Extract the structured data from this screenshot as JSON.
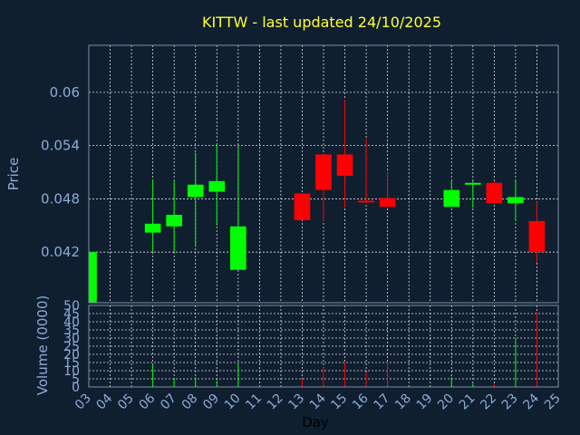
{
  "chart_data": {
    "type": "candlestick",
    "title": "KITTW - last updated 24/10/2025",
    "price_panel": {
      "ylabel": "Price",
      "ylim": [
        0.0363,
        0.0653
      ],
      "yticks": [
        0.042,
        0.048,
        0.054,
        0.06
      ],
      "ytick_labels": [
        "0.042",
        "0.048",
        "0.054",
        "0.06"
      ],
      "grid": true
    },
    "volume_panel": {
      "ylabel": "Volume (0000)",
      "ylim": [
        0,
        50
      ],
      "yticks": [
        0,
        5,
        10,
        15,
        20,
        25,
        30,
        35,
        40,
        45,
        50
      ],
      "ytick_labels": [
        "0",
        "5",
        "10",
        "15",
        "20",
        "25",
        "30",
        "35",
        "40",
        "45",
        "50"
      ],
      "grid": true
    },
    "xlabel": "Day",
    "x_tick_labels": [
      "03",
      "04",
      "05",
      "06",
      "07",
      "08",
      "09",
      "10",
      "11",
      "12",
      "13",
      "14",
      "15",
      "16",
      "17",
      "18",
      "19",
      "20",
      "21",
      "22",
      "23",
      "24",
      "25"
    ],
    "up_color": "#00ff00",
    "down_color": "#ff0000",
    "candles": [
      {
        "day": "03",
        "open": 0.0363,
        "high": 0.042,
        "low": 0.0363,
        "close": 0.042,
        "volume": 0
      },
      {
        "day": "06",
        "open": 0.0442,
        "high": 0.0502,
        "low": 0.042,
        "close": 0.0452,
        "volume": 14
      },
      {
        "day": "07",
        "open": 0.0449,
        "high": 0.05,
        "low": 0.042,
        "close": 0.0462,
        "volume": 5
      },
      {
        "day": "08",
        "open": 0.0482,
        "high": 0.0532,
        "low": 0.0426,
        "close": 0.0496,
        "volume": 6
      },
      {
        "day": "09",
        "open": 0.0488,
        "high": 0.0542,
        "low": 0.045,
        "close": 0.05,
        "volume": 4
      },
      {
        "day": "10",
        "open": 0.04,
        "high": 0.054,
        "low": 0.04,
        "close": 0.0449,
        "volume": 14
      },
      {
        "day": "13",
        "open": 0.0486,
        "high": 0.0486,
        "low": 0.0456,
        "close": 0.0456,
        "volume": 5
      },
      {
        "day": "14",
        "open": 0.053,
        "high": 0.053,
        "low": 0.0455,
        "close": 0.049,
        "volume": 12
      },
      {
        "day": "15",
        "open": 0.053,
        "high": 0.0592,
        "low": 0.047,
        "close": 0.0506,
        "volume": 15
      },
      {
        "day": "16",
        "open": 0.0478,
        "high": 0.0548,
        "low": 0.0475,
        "close": 0.0476,
        "volume": 9
      },
      {
        "day": "17",
        "open": 0.0481,
        "high": 0.0511,
        "low": 0.0471,
        "close": 0.0471,
        "volume": 15
      },
      {
        "day": "20",
        "open": 0.0471,
        "high": 0.05,
        "low": 0.0471,
        "close": 0.049,
        "volume": 6
      },
      {
        "day": "21",
        "open": 0.0496,
        "high": 0.05,
        "low": 0.047,
        "close": 0.0498,
        "volume": 2
      },
      {
        "day": "22",
        "open": 0.0498,
        "high": 0.05,
        "low": 0.0475,
        "close": 0.0475,
        "volume": 2
      },
      {
        "day": "23",
        "open": 0.0475,
        "high": 0.05,
        "low": 0.0455,
        "close": 0.0482,
        "volume": 30
      },
      {
        "day": "24",
        "open": 0.0455,
        "high": 0.0477,
        "low": 0.0408,
        "close": 0.042,
        "volume": 46
      }
    ]
  }
}
